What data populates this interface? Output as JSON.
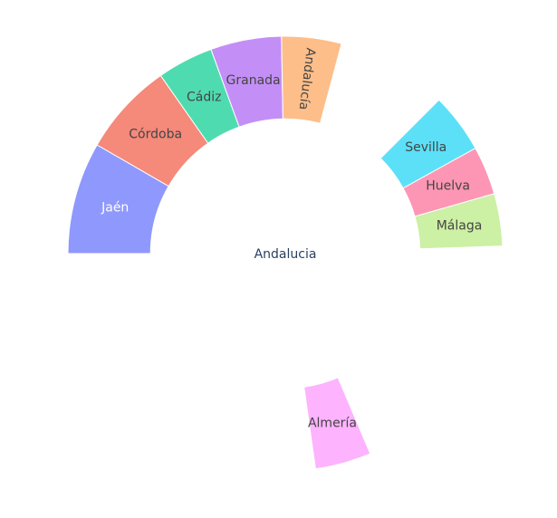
{
  "chart_data": {
    "type": "sunburst",
    "root": {
      "name": "Andalucia"
    },
    "segments": [
      {
        "name": "Jaén",
        "start_deg": -90,
        "end_deg": -60,
        "inner": 0.62,
        "outer": 1.0,
        "color": "#8f98fc",
        "text_color": "#ffffff"
      },
      {
        "name": "Córdoba",
        "start_deg": -60,
        "end_deg": -35,
        "inner": 0.62,
        "outer": 1.0,
        "color": "#f5897a",
        "text_color": "#444444"
      },
      {
        "name": "Cádiz",
        "start_deg": -35,
        "end_deg": -20,
        "inner": 0.62,
        "outer": 1.0,
        "color": "#4fdbb0",
        "text_color": "#444444"
      },
      {
        "name": "Granada",
        "start_deg": -20,
        "end_deg": -1,
        "inner": 0.62,
        "outer": 1.0,
        "color": "#c38ff6",
        "text_color": "#444444"
      },
      {
        "name": "Andalucía",
        "start_deg": -1,
        "end_deg": 15,
        "inner": 0.62,
        "outer": 1.0,
        "color": "#fdbe8a",
        "text_color": "#444444",
        "radial_text": true
      },
      {
        "name": "Sevilla",
        "start_deg": 45,
        "end_deg": 61,
        "inner": 0.62,
        "outer": 1.0,
        "color": "#5ce0f8",
        "text_color": "#444444"
      },
      {
        "name": "Huelva",
        "start_deg": 61,
        "end_deg": 74,
        "inner": 0.62,
        "outer": 1.0,
        "color": "#fd96b4",
        "text_color": "#444444"
      },
      {
        "name": "Málaga",
        "start_deg": 74,
        "end_deg": 88,
        "inner": 0.62,
        "outer": 1.0,
        "color": "#ccf0a4",
        "text_color": "#444444"
      },
      {
        "name": "Almería",
        "start_deg": 157,
        "end_deg": 172,
        "inner": 0.62,
        "outer": 1.0,
        "color": "#fdb3fd",
        "text_color": "#444444"
      }
    ]
  }
}
